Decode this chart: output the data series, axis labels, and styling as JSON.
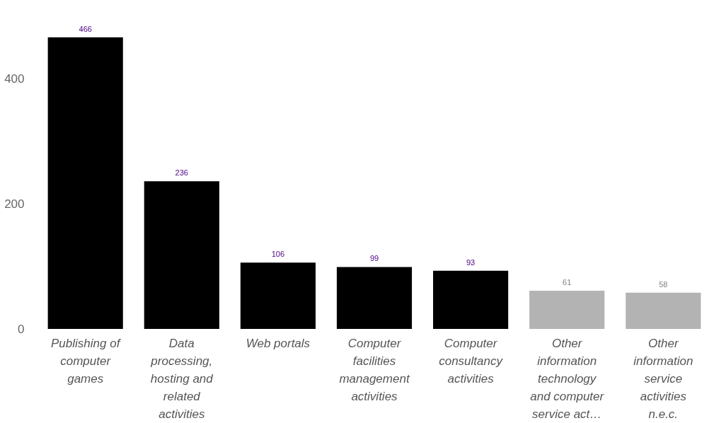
{
  "chart_data": {
    "type": "bar",
    "categories": [
      "Publishing of computer games",
      "Data processing, hosting and related activities",
      "Web portals",
      "Computer facilities management activities",
      "Computer consultancy activities",
      "Other information technology and computer service act…",
      "Other information service activities n.e.c."
    ],
    "values": [
      466,
      236,
      106,
      99,
      93,
      61,
      58
    ],
    "colors": [
      "#000000",
      "#000000",
      "#000000",
      "#000000",
      "#000000",
      "#b3b3b3",
      "#b3b3b3"
    ],
    "data_labels": true,
    "ylim": [
      0,
      520
    ],
    "yticks": [
      0,
      200,
      400
    ],
    "grid": false
  }
}
